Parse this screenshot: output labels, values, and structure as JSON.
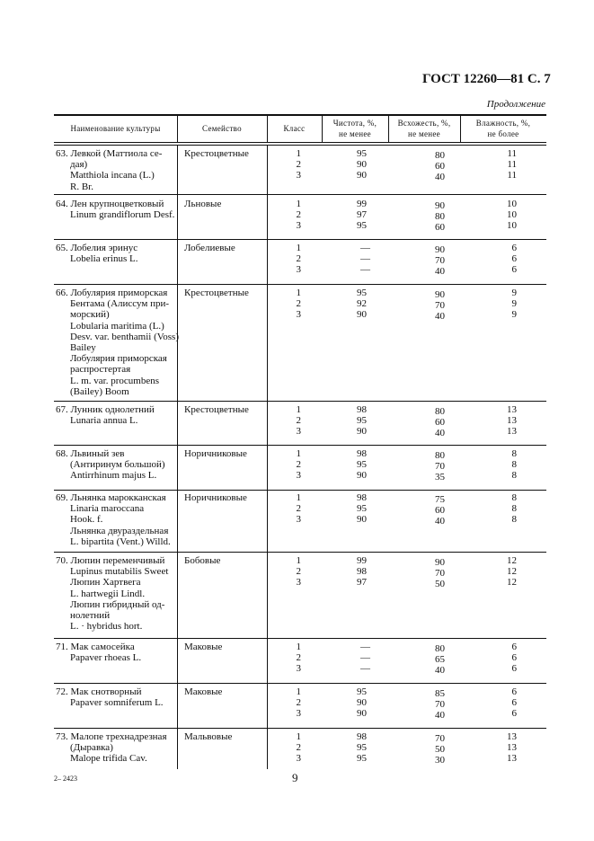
{
  "header": {
    "doc_id": "ГОСТ 12260—81 С. 7",
    "continuation": "Продолжение"
  },
  "table": {
    "columns": [
      "Наименование культуры",
      "Семейство",
      "Класс",
      "Чистота, %,\nне менее",
      "Всхожесть, %,\nне менее",
      "Влажность, %,\nне более"
    ],
    "rows": [
      {
        "name": [
          "63. Левкой (Маттиола се-",
          "дая)",
          "Matthiola incana (L.)",
          "R. Br."
        ],
        "family": "Крестоцветные",
        "classes": [
          "1",
          "2",
          "3"
        ],
        "purity": [
          "95",
          "90",
          "90"
        ],
        "germination": [
          "80",
          "60",
          "40"
        ],
        "moisture": [
          "11",
          "11",
          "11"
        ]
      },
      {
        "name": [
          "64. Лен крупноцветковый",
          "Linum grandiflorum Desf."
        ],
        "family": "Льновые",
        "classes": [
          "1",
          "2",
          "3"
        ],
        "purity": [
          "99",
          "97",
          "95"
        ],
        "germination": [
          "90",
          "80",
          "60"
        ],
        "moisture": [
          "10",
          "10",
          "10"
        ]
      },
      {
        "name": [
          "65. Лобелия эринус",
          "Lobelia erinus L."
        ],
        "family": "Лобелиевые",
        "classes": [
          "1",
          "2",
          "3"
        ],
        "purity": [
          "—",
          "—",
          "—"
        ],
        "germination": [
          "90",
          "70",
          "40"
        ],
        "moisture": [
          "6",
          "6",
          "6"
        ]
      },
      {
        "name": [
          "66. Лобулярия приморская",
          "Бентама (Алиссум при-",
          "морский)",
          "Lobularia maritima (L.)",
          "Desv. var. benthamii (Voss)",
          "Bailey",
          "Лобулярия приморская",
          "распростертая",
          "L. m. var. procumbens",
          "(Bailey)  Boom"
        ],
        "family": "Крестоцветные",
        "classes": [
          "1",
          "2",
          "3"
        ],
        "purity": [
          "95",
          "92",
          "90"
        ],
        "germination": [
          "90",
          "70",
          "40"
        ],
        "moisture": [
          "9",
          "9",
          "9"
        ]
      },
      {
        "name": [
          "67. Лунник однолетний",
          "Lunaria annua L."
        ],
        "family": "Крестоцветные",
        "classes": [
          "1",
          "2",
          "3"
        ],
        "purity": [
          "98",
          "95",
          "90"
        ],
        "germination": [
          "80",
          "60",
          "40"
        ],
        "moisture": [
          "13",
          "13",
          "13"
        ]
      },
      {
        "name": [
          "68. Львиный зев",
          "(Антиринум большой)",
          "Antirrhinum majus L."
        ],
        "family": "Норичниковые",
        "classes": [
          "1",
          "2",
          "3"
        ],
        "purity": [
          "98",
          "95",
          "90"
        ],
        "germination": [
          "80",
          "70",
          "35"
        ],
        "moisture": [
          "8",
          "8",
          "8"
        ]
      },
      {
        "name": [
          "69. Льнянка марокканская",
          "Linaria maroccana",
          "Hook. f.",
          "Льнянка двураздельная",
          "L. bipartita (Vent.)  Willd."
        ],
        "family": "Норичниковые",
        "classes": [
          "1",
          "2",
          "3"
        ],
        "purity": [
          "98",
          "95",
          "90"
        ],
        "germination": [
          "75",
          "60",
          "40"
        ],
        "moisture": [
          "8",
          "8",
          "8"
        ]
      },
      {
        "name": [
          "70. Люпин переменчивый",
          "Lupinus mutabilis Sweet",
          "Люпин Хартвега",
          "L. hartwegii Lindl.",
          "Люпин гибридный од-",
          "нолетний",
          "L. · hybridus hort."
        ],
        "family": "Бобовые",
        "classes": [
          "1",
          "2",
          "3"
        ],
        "purity": [
          "99",
          "98",
          "97"
        ],
        "germination": [
          "90",
          "70",
          "50"
        ],
        "moisture": [
          "12",
          "12",
          "12"
        ]
      },
      {
        "name": [
          "71. Мак самосейка",
          "Papaver rhoeas  L."
        ],
        "family": "Маковые",
        "classes": [
          "1",
          "2",
          "3"
        ],
        "purity": [
          "—",
          "—",
          "—"
        ],
        "germination": [
          "80",
          "65",
          "40"
        ],
        "moisture": [
          "6",
          "6",
          "6"
        ]
      },
      {
        "name": [
          "72. Мак снотворный",
          "Papaver somniferum  L."
        ],
        "family": "Маковые",
        "classes": [
          "1",
          "2",
          "3"
        ],
        "purity": [
          "95",
          "90",
          "90"
        ],
        "germination": [
          "85",
          "70",
          "40"
        ],
        "moisture": [
          "6",
          "6",
          "6"
        ]
      },
      {
        "name": [
          "73. Малопе трехнадрезная",
          "(Дыравка)",
          "Malope trifida Cav."
        ],
        "family": "Мальвовые",
        "classes": [
          "1",
          "2",
          "3"
        ],
        "purity": [
          "98",
          "95",
          "95"
        ],
        "germination": [
          "70",
          "50",
          "30"
        ],
        "moisture": [
          "13",
          "13",
          "13"
        ]
      }
    ]
  },
  "footer": {
    "print_code": "2– 2423",
    "page_number": "9"
  }
}
